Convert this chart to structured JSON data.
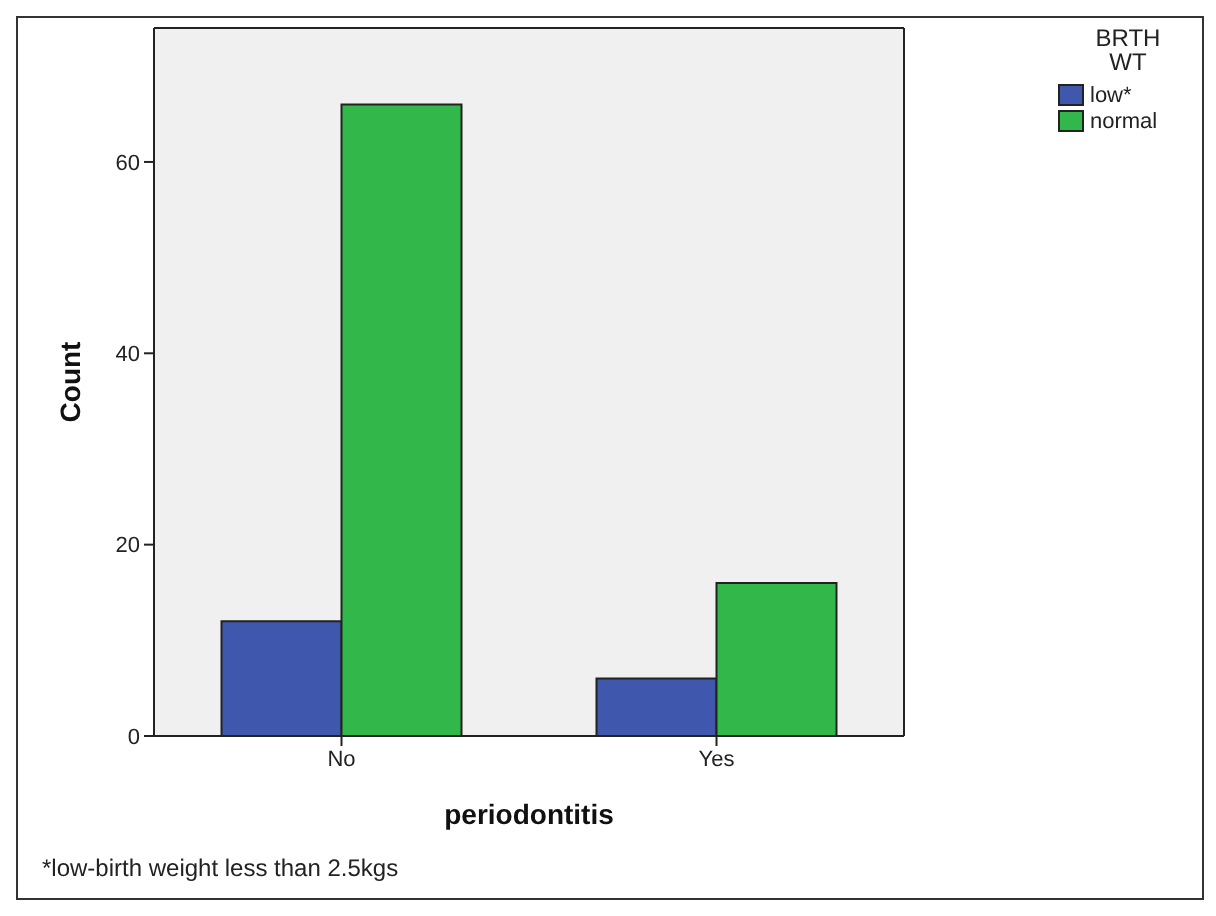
{
  "chart_data": {
    "type": "bar",
    "xlabel": "periodontitis",
    "ylabel": "Count",
    "legend_title": "BRTH\nWT",
    "categories": [
      "No",
      "Yes"
    ],
    "series": [
      {
        "name": "low*",
        "color": "#3f57ac",
        "values": [
          12,
          6
        ]
      },
      {
        "name": "normal",
        "color": "#31b74a",
        "values": [
          66,
          16
        ]
      }
    ],
    "ylim": [
      0,
      74
    ],
    "yticks": [
      0,
      20,
      40,
      60
    ],
    "legend": "top right",
    "annotations": [
      "*low-birth weight less than 2.5kgs"
    ]
  }
}
